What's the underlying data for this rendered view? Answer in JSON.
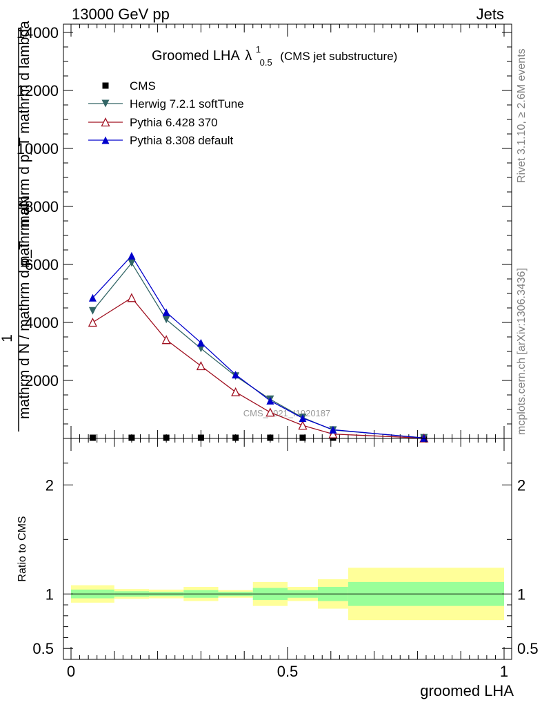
{
  "header": {
    "left": "13000 GeV pp",
    "right": "Jets"
  },
  "side_labels": {
    "rivet": "Rivet 3.1.10, ≥ 2.6M events",
    "mcplots": "mcplots.cern.ch [arXiv:1306.3436]"
  },
  "watermark": "CMS_2021_I1920187",
  "colors": {
    "cms": "#000000",
    "herwig": "#336666",
    "pythia6": "#a01020",
    "pythia8": "#0000cc",
    "band_inner": "#99ff99",
    "band_outer": "#ffff99"
  },
  "chart_data": [
    {
      "type": "line",
      "title_main": "Groomed LHA",
      "title_lambda": "λ",
      "title_sup": "1",
      "title_sub": "0.5",
      "title_suffix": "(CMS jet substructure)",
      "xlabel": "groomed LHA",
      "ylabel_numerator": "1",
      "ylabel_line1": "mathrm dN",
      "ylabel_line2": "mathrm d p_T mathrm d lambda",
      "ylabel_denominator": "mathrm d N / mathrm d p_T",
      "xlim": [
        0,
        1
      ],
      "ylim": [
        0,
        14000
      ],
      "yticks": [
        2000,
        4000,
        6000,
        8000,
        10000,
        12000,
        14000
      ],
      "ytick_labels": [
        "2000",
        "4000",
        "6000",
        "8000",
        "10000",
        "12000",
        "14000"
      ],
      "legend_position": "top-left",
      "series": [
        {
          "name": "CMS",
          "marker": "square",
          "x": [
            0.05,
            0.14,
            0.22,
            0.3,
            0.38,
            0.46,
            0.535,
            0.605,
            0.815
          ],
          "values": [
            0,
            0,
            0,
            0,
            0,
            0,
            0,
            0,
            0
          ]
        },
        {
          "name": "Herwig 7.2.1 softTune",
          "marker": "triangle-down",
          "x": [
            0.05,
            0.14,
            0.22,
            0.3,
            0.38,
            0.46,
            0.535,
            0.605,
            0.815
          ],
          "values": [
            4400,
            6050,
            4100,
            3100,
            2150,
            1350,
            720,
            290,
            20
          ]
        },
        {
          "name": "Pythia 6.428 370",
          "marker": "triangle-up-open",
          "x": [
            0.05,
            0.14,
            0.22,
            0.3,
            0.38,
            0.46,
            0.535,
            0.605,
            0.815
          ],
          "values": [
            4000,
            4850,
            3400,
            2500,
            1600,
            900,
            450,
            150,
            10
          ]
        },
        {
          "name": "Pythia 8.308 default",
          "marker": "triangle-up",
          "x": [
            0.05,
            0.14,
            0.22,
            0.3,
            0.38,
            0.46,
            0.535,
            0.605,
            0.815
          ],
          "values": [
            4850,
            6300,
            4350,
            3300,
            2200,
            1300,
            700,
            300,
            15
          ]
        }
      ]
    },
    {
      "type": "area",
      "ylabel": "Ratio to CMS",
      "xlim": [
        0,
        1
      ],
      "ylim": [
        0.4,
        2.3
      ],
      "yticks": [
        0.5,
        1,
        2
      ],
      "ytick_labels": [
        "0.5",
        "1",
        "2"
      ],
      "xticks": [
        0,
        0.5,
        1
      ],
      "xtick_labels": [
        "0",
        "0.5",
        "1"
      ],
      "bins": [
        {
          "x0": 0.0,
          "x1": 0.1,
          "inner": [
            0.96,
            1.04
          ],
          "outer": [
            0.92,
            1.08
          ]
        },
        {
          "x0": 0.1,
          "x1": 0.18,
          "inner": [
            0.975,
            1.025
          ],
          "outer": [
            0.955,
            1.045
          ]
        },
        {
          "x0": 0.18,
          "x1": 0.26,
          "inner": [
            0.98,
            1.02
          ],
          "outer": [
            0.96,
            1.04
          ]
        },
        {
          "x0": 0.26,
          "x1": 0.34,
          "inner": [
            0.965,
            1.035
          ],
          "outer": [
            0.935,
            1.065
          ]
        },
        {
          "x0": 0.34,
          "x1": 0.42,
          "inner": [
            0.98,
            1.02
          ],
          "outer": [
            0.965,
            1.035
          ]
        },
        {
          "x0": 0.42,
          "x1": 0.5,
          "inner": [
            0.945,
            1.055
          ],
          "outer": [
            0.89,
            1.11
          ]
        },
        {
          "x0": 0.5,
          "x1": 0.57,
          "inner": [
            0.965,
            1.035
          ],
          "outer": [
            0.935,
            1.065
          ]
        },
        {
          "x0": 0.57,
          "x1": 0.64,
          "inner": [
            0.935,
            1.065
          ],
          "outer": [
            0.865,
            1.135
          ]
        },
        {
          "x0": 0.64,
          "x1": 1.0,
          "inner": [
            0.89,
            1.11
          ],
          "outer": [
            0.76,
            1.24
          ]
        }
      ]
    }
  ]
}
